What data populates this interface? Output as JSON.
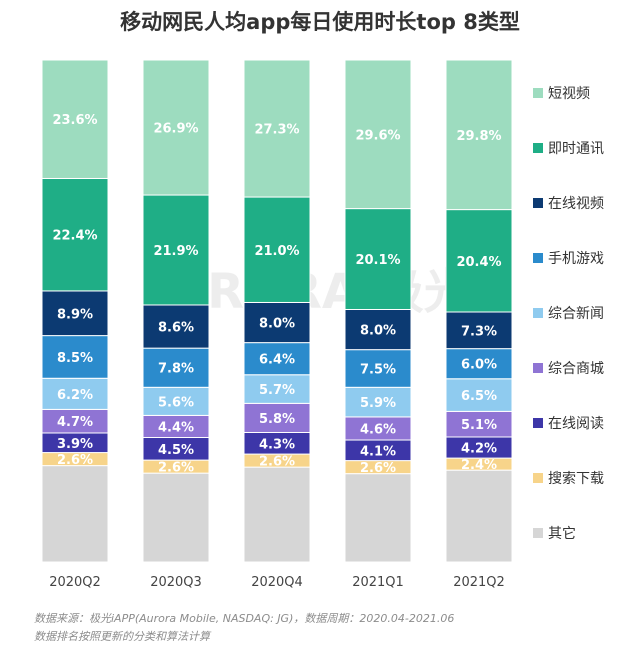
{
  "title": "移动网民人均app每日使用时长top 8类型",
  "chart_data": {
    "type": "bar",
    "stacked": true,
    "normalized": true,
    "categories": [
      "2020Q2",
      "2020Q3",
      "2020Q4",
      "2021Q1",
      "2021Q2"
    ],
    "legend_position": "right",
    "series": [
      {
        "name": "其它",
        "color": "#d6d6d6",
        "values": [
          null,
          null,
          null,
          null,
          null
        ]
      },
      {
        "name": "搜索下载",
        "color": "#f7d48a",
        "values": [
          2.6,
          2.6,
          2.6,
          2.6,
          2.4
        ]
      },
      {
        "name": "在线阅读",
        "color": "#3d36a8",
        "values": [
          3.9,
          4.5,
          4.3,
          4.1,
          4.2
        ]
      },
      {
        "name": "综合商城",
        "color": "#8f74d4",
        "values": [
          4.7,
          4.4,
          5.8,
          4.6,
          5.1
        ]
      },
      {
        "name": "综合新闻",
        "color": "#8fcbef",
        "values": [
          6.2,
          5.6,
          5.7,
          5.9,
          6.5
        ]
      },
      {
        "name": "手机游戏",
        "color": "#2b8bcc",
        "values": [
          8.5,
          7.8,
          6.4,
          7.5,
          6.0
        ]
      },
      {
        "name": "在线视频",
        "color": "#0c3a72",
        "values": [
          8.9,
          8.6,
          8.0,
          8.0,
          7.3
        ]
      },
      {
        "name": "即时通讯",
        "color": "#1fae86",
        "values": [
          22.4,
          21.9,
          21.0,
          20.1,
          20.4
        ]
      },
      {
        "name": "短视频",
        "color": "#9ddcbf",
        "values": [
          23.6,
          26.9,
          27.3,
          29.6,
          29.8
        ]
      }
    ],
    "value_suffix": "%"
  },
  "source_line1": "数据来源：极光iAPP(Aurora Mobile, NASDAQ: JG)，数据周期：2020.04-2021.06",
  "source_line2": "数据排名按照更新的分类和算法计算",
  "watermark": "URORA 极光"
}
